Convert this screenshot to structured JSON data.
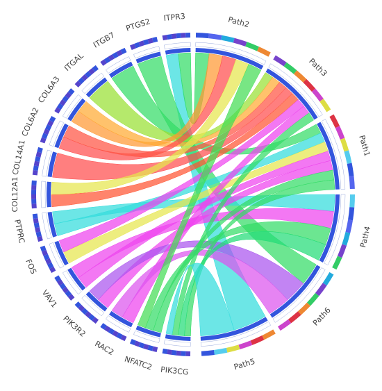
{
  "genes": [
    "ITPR3",
    "PTGS2",
    "ITGB7",
    "ITGAL",
    "COL6A3",
    "COL6A2",
    "COL14A1",
    "COL12A1",
    "PTPRC",
    "FOS",
    "VAV1",
    "PIK3R2",
    "RAC2",
    "NFATC2",
    "PIK3CG"
  ],
  "pathways": [
    "Path2",
    "Path3",
    "Path1",
    "Path4",
    "Path6",
    "Path5"
  ],
  "links": [
    {
      "source": "ITPR3",
      "target": "Path5",
      "color": "#33dddd"
    },
    {
      "source": "ITPR3",
      "target": "Path2",
      "color": "#33dd66"
    },
    {
      "source": "PTGS2",
      "target": "Path6",
      "color": "#33dd66"
    },
    {
      "source": "ITGB7",
      "target": "Path1",
      "color": "#33dd66"
    },
    {
      "source": "ITGAL",
      "target": "Path3",
      "color": "#99e033"
    },
    {
      "source": "COL6A3",
      "target": "Path2",
      "color": "#ff9933"
    },
    {
      "source": "COL6A3",
      "target": "Path3",
      "color": "#ffaa33"
    },
    {
      "source": "COL6A2",
      "target": "Path2",
      "color": "#ff4d4d"
    },
    {
      "source": "COL6A2",
      "target": "Path3",
      "color": "#ff5544"
    },
    {
      "source": "COL14A1",
      "target": "Path3",
      "color": "#ff4d4d"
    },
    {
      "source": "COL12A1",
      "target": "Path3",
      "color": "#ff5533"
    },
    {
      "source": "COL12A1",
      "target": "Path2",
      "color": "#e6e64d"
    },
    {
      "source": "PTPRC",
      "target": "Path1",
      "color": "#33dddd"
    },
    {
      "source": "PTPRC",
      "target": "Path4",
      "color": "#33dddd"
    },
    {
      "source": "FOS",
      "target": "Path1",
      "color": "#e6e64d"
    },
    {
      "source": "FOS",
      "target": "Path3",
      "color": "#ee44ee"
    },
    {
      "source": "VAV1",
      "target": "Path1",
      "color": "#ee44ee"
    },
    {
      "source": "VAV1",
      "target": "Path4",
      "color": "#ee44ee"
    },
    {
      "source": "PIK3R2",
      "target": "Path1",
      "color": "#ee44ee"
    },
    {
      "source": "PIK3R2",
      "target": "Path6",
      "color": "#aa55ee"
    },
    {
      "source": "RAC2",
      "target": "Path3",
      "color": "#ee44ee"
    },
    {
      "source": "RAC2",
      "target": "Path6",
      "color": "#dd55ee"
    },
    {
      "source": "NFATC2",
      "target": "Path1",
      "color": "#33dd66"
    },
    {
      "source": "NFATC2",
      "target": "Path4",
      "color": "#33dd66"
    },
    {
      "source": "NFATC2",
      "target": "Path2",
      "color": "#44dd55"
    },
    {
      "source": "PIK3CG",
      "target": "Path1",
      "color": "#33dd66"
    },
    {
      "source": "PIK3CG",
      "target": "Path4",
      "color": "#22dd77"
    },
    {
      "source": "PIK3CG",
      "target": "Path3",
      "color": "#33dd66"
    },
    {
      "source": "PIK3CG",
      "target": "Path5",
      "color": "#33dddd"
    }
  ]
}
